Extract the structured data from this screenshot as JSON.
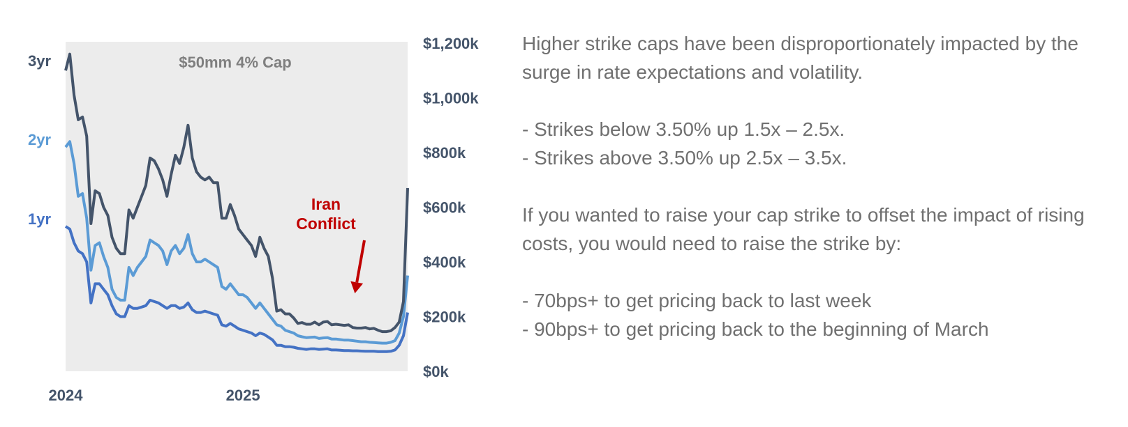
{
  "chart_data": {
    "type": "line",
    "title": "$50mm 4% Cap",
    "x_tick_labels": [
      "2024",
      "2025"
    ],
    "x_ticks": [
      0,
      42
    ],
    "x_range": [
      0,
      73
    ],
    "y_right_labels": [
      "$1,200k",
      "$1,000k",
      "$800k",
      "$600k",
      "$400k",
      "$200k",
      "$0k"
    ],
    "y_right_values": [
      1200,
      1000,
      800,
      600,
      400,
      200,
      0
    ],
    "ylim": [
      0,
      1200
    ],
    "annotation": {
      "lines": [
        "Iran",
        "Conflict"
      ],
      "arrow_x": 68.5,
      "arrow_y": 285
    },
    "series": [
      {
        "name": "3yr",
        "color": "#44546a",
        "label_color": "#44546a",
        "values": [
          1100,
          1160,
          1010,
          920,
          930,
          860,
          540,
          660,
          650,
          600,
          570,
          490,
          450,
          430,
          430,
          590,
          560,
          600,
          640,
          680,
          780,
          770,
          740,
          700,
          640,
          720,
          790,
          760,
          820,
          900,
          780,
          730,
          710,
          700,
          710,
          690,
          690,
          560,
          560,
          610,
          570,
          520,
          500,
          480,
          460,
          420,
          490,
          450,
          420,
          340,
          220,
          225,
          210,
          210,
          195,
          175,
          178,
          172,
          172,
          180,
          170,
          180,
          182,
          170,
          172,
          170,
          168,
          170,
          160,
          158,
          158,
          160,
          155,
          157,
          150,
          145,
          145,
          148,
          160,
          180,
          255,
          670
        ]
      },
      {
        "name": "2yr",
        "color": "#5b9bd5",
        "label_color": "#5b9bd5",
        "values": [
          820,
          840,
          760,
          640,
          650,
          560,
          370,
          460,
          470,
          420,
          380,
          300,
          270,
          260,
          260,
          380,
          350,
          380,
          400,
          420,
          480,
          470,
          460,
          440,
          390,
          440,
          460,
          430,
          450,
          500,
          430,
          400,
          400,
          410,
          400,
          390,
          380,
          310,
          300,
          320,
          300,
          280,
          280,
          270,
          250,
          230,
          250,
          230,
          210,
          190,
          170,
          165,
          150,
          145,
          140,
          130,
          126,
          123,
          124,
          125,
          120,
          122,
          123,
          118,
          118,
          116,
          114,
          114,
          112,
          110,
          108,
          108,
          106,
          105,
          104,
          103,
          103,
          106,
          112,
          140,
          200,
          350
        ]
      },
      {
        "name": "1yr",
        "color": "#4472c4",
        "label_color": "#4472c4",
        "values": [
          530,
          520,
          470,
          440,
          430,
          400,
          250,
          320,
          320,
          300,
          280,
          240,
          210,
          200,
          200,
          240,
          230,
          230,
          235,
          240,
          260,
          255,
          250,
          240,
          230,
          240,
          240,
          230,
          235,
          250,
          225,
          215,
          215,
          220,
          215,
          210,
          205,
          170,
          165,
          175,
          165,
          155,
          150,
          145,
          140,
          130,
          140,
          135,
          125,
          115,
          95,
          95,
          90,
          90,
          88,
          84,
          82,
          80,
          82,
          82,
          80,
          81,
          82,
          78,
          78,
          77,
          76,
          76,
          75,
          75,
          74,
          73,
          73,
          73,
          72,
          72,
          72,
          73,
          78,
          95,
          130,
          215
        ]
      }
    ]
  },
  "text_panel": {
    "p1": "Higher strike caps have been disproportionately impacted by the surge in rate expectations and volatility.",
    "b1": "- Strikes below 3.50% up 1.5x – 2.5x.",
    "b2": "- Strikes above 3.50% up 2.5x – 3.5x.",
    "p2": "If you wanted to raise your cap strike to offset the impact of rising costs, you would need to raise the strike by:",
    "b3": "- 70bps+ to get pricing back to last week",
    "b4": "- 90bps+ to get pricing back to the beginning of March"
  }
}
